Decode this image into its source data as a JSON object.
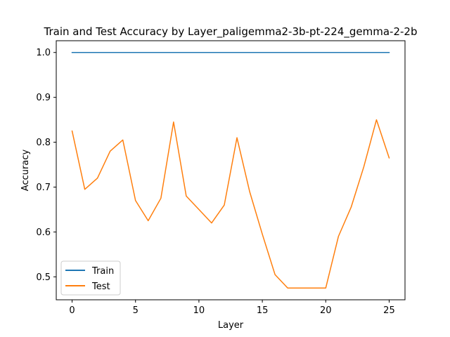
{
  "chart_data": {
    "type": "line",
    "title": "Train and Test Accuracy by Layer_paligemma2-3b-pt-224_gemma-2-2b",
    "xlabel": "Layer",
    "ylabel": "Accuracy",
    "xlim": [
      -1.25,
      26.25
    ],
    "ylim": [
      0.4488,
      1.0262
    ],
    "x_ticks": [
      0,
      5,
      10,
      15,
      20,
      25
    ],
    "y_ticks": [
      0.5,
      0.6,
      0.7,
      0.8,
      0.9,
      1.0
    ],
    "x_tick_labels": [
      "0",
      "5",
      "10",
      "15",
      "20",
      "25"
    ],
    "y_tick_labels": [
      "0.5",
      "0.6",
      "0.7",
      "0.8",
      "0.9",
      "1.0"
    ],
    "grid": false,
    "legend_position": "lower-left",
    "x": [
      0,
      1,
      2,
      3,
      4,
      5,
      6,
      7,
      8,
      9,
      10,
      11,
      12,
      13,
      14,
      15,
      16,
      17,
      18,
      19,
      20,
      21,
      22,
      23,
      24,
      25
    ],
    "series": [
      {
        "name": "Train",
        "color": "#1f77b4",
        "values": [
          1.0,
          1.0,
          1.0,
          1.0,
          1.0,
          1.0,
          1.0,
          1.0,
          1.0,
          1.0,
          1.0,
          1.0,
          1.0,
          1.0,
          1.0,
          1.0,
          1.0,
          1.0,
          1.0,
          1.0,
          1.0,
          1.0,
          1.0,
          1.0,
          1.0,
          1.0
        ]
      },
      {
        "name": "Test",
        "color": "#ff7f0e",
        "values": [
          0.825,
          0.695,
          0.72,
          0.78,
          0.805,
          0.67,
          0.625,
          0.675,
          0.845,
          0.68,
          0.65,
          0.62,
          0.66,
          0.81,
          0.69,
          0.595,
          0.505,
          0.475,
          0.475,
          0.475,
          0.475,
          0.59,
          0.655,
          0.745,
          0.85,
          0.765
        ]
      }
    ]
  }
}
